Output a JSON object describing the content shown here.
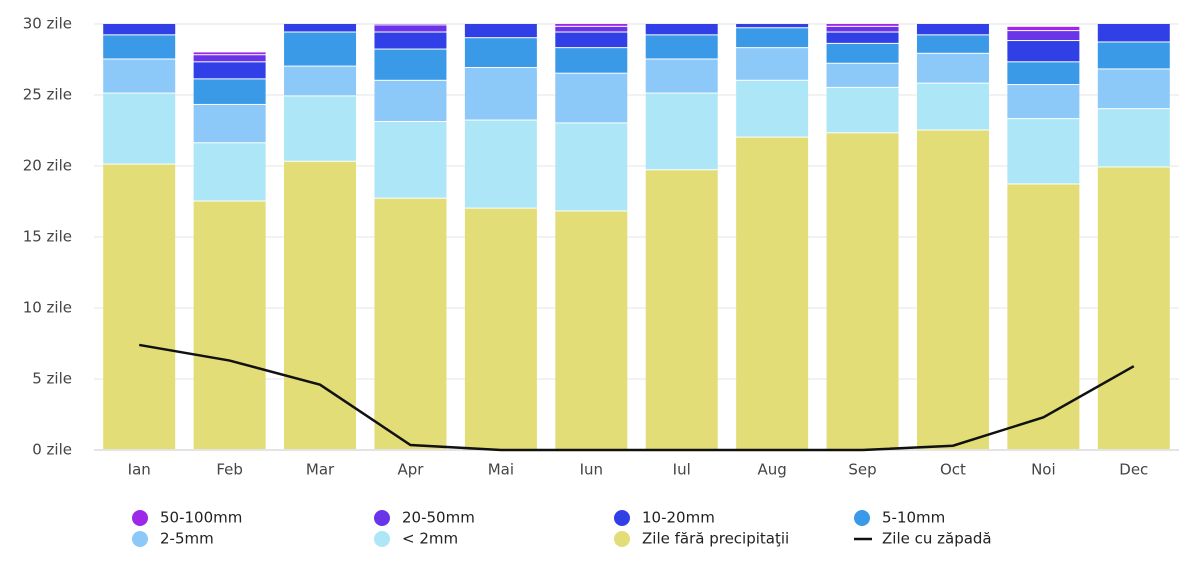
{
  "chart_data": {
    "type": "bar",
    "stacked": true,
    "categories": [
      "Ian",
      "Feb",
      "Mar",
      "Apr",
      "Mai",
      "Iun",
      "Iul",
      "Aug",
      "Sep",
      "Oct",
      "Noi",
      "Dec"
    ],
    "ylim": [
      0,
      30
    ],
    "yticks": [
      {
        "value": 0,
        "label": "0 zile"
      },
      {
        "value": 5,
        "label": "5 zile"
      },
      {
        "value": 10,
        "label": "10 zile"
      },
      {
        "value": 15,
        "label": "15 zile"
      },
      {
        "value": 20,
        "label": "20 zile"
      },
      {
        "value": 25,
        "label": "25 zile"
      },
      {
        "value": 30,
        "label": "30 zile"
      }
    ],
    "grid": true,
    "series": [
      {
        "name": "50-100mm",
        "color": "#9e28e8",
        "values": [
          0.1,
          0.2,
          0.1,
          0.1,
          0.1,
          0.2,
          0.1,
          0.1,
          0.2,
          0.2,
          0.3,
          0.2
        ]
      },
      {
        "name": "20-50mm",
        "color": "#6a35e8",
        "values": [
          0.4,
          0.5,
          0.3,
          0.5,
          0.5,
          0.4,
          0.4,
          0.2,
          0.4,
          0.4,
          0.7,
          0.6
        ]
      },
      {
        "name": "10-20mm",
        "color": "#3140e6",
        "values": [
          1.3,
          1.2,
          1.2,
          1.2,
          1.4,
          1.1,
          1.3,
          1.0,
          0.8,
          1.2,
          1.5,
          1.5
        ]
      },
      {
        "name": "5-10mm",
        "color": "#3a9ae8",
        "values": [
          1.7,
          1.8,
          2.4,
          2.2,
          2.1,
          1.8,
          1.7,
          1.4,
          1.4,
          1.3,
          1.6,
          1.9
        ]
      },
      {
        "name": "2-5mm",
        "color": "#8cc8f8",
        "values": [
          2.4,
          2.7,
          2.1,
          2.9,
          3.7,
          3.5,
          2.4,
          2.3,
          1.7,
          2.1,
          2.4,
          2.8
        ]
      },
      {
        "name": "< 2mm",
        "color": "#ade6f6",
        "values": [
          5.0,
          4.1,
          4.6,
          5.4,
          6.2,
          6.2,
          5.4,
          4.0,
          3.2,
          3.3,
          4.6,
          4.1
        ]
      },
      {
        "name": "Zile fără precipitaţii",
        "color": "#e2dd76",
        "values": [
          20.1,
          17.5,
          20.3,
          17.7,
          17.0,
          16.8,
          19.7,
          22.0,
          22.3,
          22.5,
          18.7,
          19.9
        ]
      },
      {
        "name": "Zile cu zăpadă",
        "type": "line",
        "color": "#111111",
        "values": [
          7.4,
          6.3,
          4.6,
          0.35,
          0,
          0,
          0,
          0,
          0,
          0.3,
          2.3,
          5.9
        ]
      }
    ]
  }
}
